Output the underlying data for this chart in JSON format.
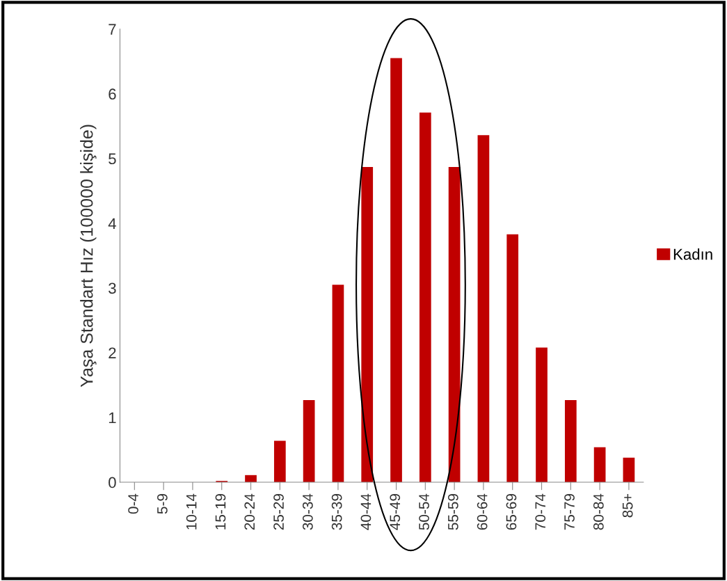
{
  "chart_data": {
    "type": "bar",
    "ylabel": "Yaşa Standart Hız (100000 kişide)",
    "categories": [
      "0-4",
      "5-9",
      "10-14",
      "15-19",
      "20-24",
      "25-29",
      "30-34",
      "35-39",
      "40-44",
      "45-49",
      "50-54",
      "55-59",
      "60-64",
      "65-69",
      "70-74",
      "75-79",
      "80-84",
      "85+"
    ],
    "series": [
      {
        "name": "Kadın",
        "color": "#c00000",
        "values": [
          0,
          0,
          0,
          0.02,
          0.11,
          0.64,
          1.27,
          3.05,
          4.87,
          6.55,
          5.71,
          4.87,
          5.36,
          3.83,
          2.08,
          1.27,
          0.54,
          0.38
        ]
      }
    ],
    "ylim": [
      0,
      7
    ],
    "yticks": [
      0,
      1,
      2,
      3,
      4,
      5,
      6,
      7
    ],
    "grid": false,
    "legend": "right"
  }
}
